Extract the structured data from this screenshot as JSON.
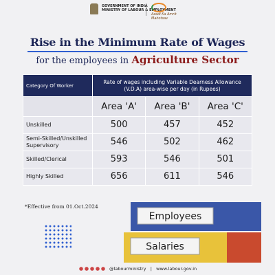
{
  "header": {
    "government": "GOVERNMENT OF INDIA",
    "ministry": "MINISTRY OF LABOUR & EMPLOYMENT",
    "campaign": "Azadi Ka Amrit Mahotsav"
  },
  "title": "Rise in the Minimum Rate of Wages",
  "subtitle": {
    "text": "for the employees in",
    "highlight": "Agriculture Sector"
  },
  "table": {
    "header": {
      "category": "Category Of Worker",
      "rate": "Rate of wages including Variable Dearness Allowance (V.D.A) area-wise per day (in Rupees)"
    },
    "areas": [
      "Area 'A'",
      "Area 'B'",
      "Area 'C'"
    ],
    "rows": [
      [
        "Unskilled",
        500,
        457,
        452
      ],
      [
        "Semi-Skilled/Unskilled Supervisory",
        546,
        502,
        462
      ],
      [
        "Skilled/Clerical",
        593,
        546,
        501
      ],
      [
        "Highly Skilled",
        656,
        611,
        546
      ]
    ]
  },
  "note": "*Effective from 01.Oct.2024",
  "image": {
    "labels": [
      "Employees",
      "Salaries"
    ]
  },
  "footer": {
    "handle": "@labourministry",
    "website": "www.labour.gov.in"
  }
}
